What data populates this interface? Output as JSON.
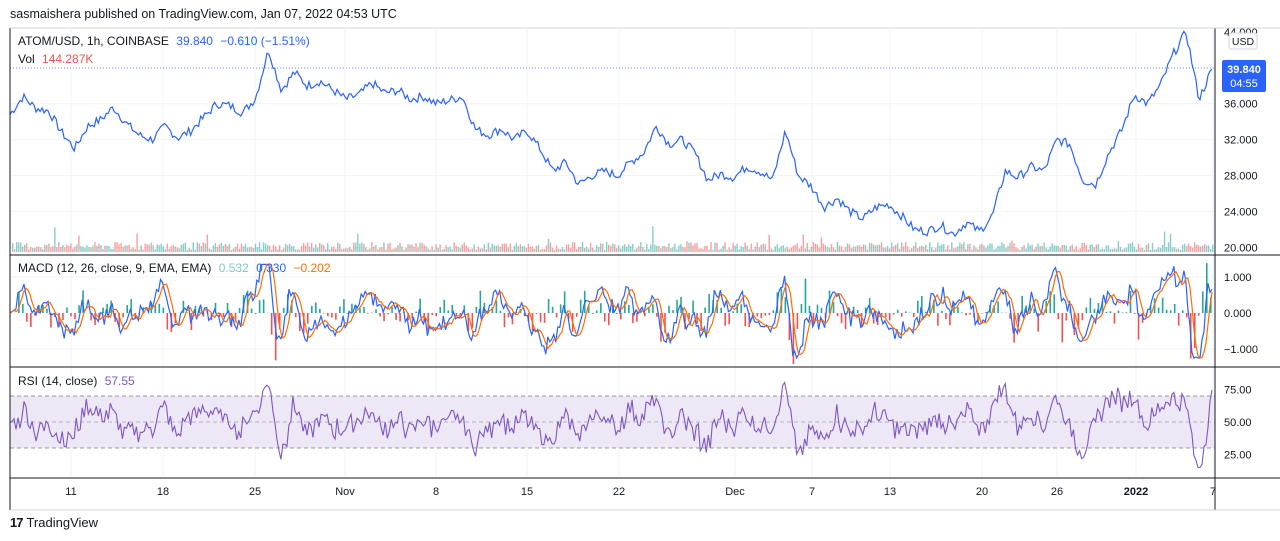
{
  "header": {
    "text": "sasmaishera published on TradingView.com, Jan 07, 2022 04:53 UTC"
  },
  "footer": {
    "brand": "TradingView",
    "logo": "tradingview-logo-icon"
  },
  "colors": {
    "price_line": "#2962ff",
    "vol_up": "#26a69a",
    "vol_down": "#ef5350",
    "macd": "#2962ff",
    "signal": "#ff6d00",
    "rsi": "#7e57c2",
    "rsi_band": "#ede7f6"
  },
  "legend": {
    "main": {
      "symbol": "ATOM/USD, 1h, COINBASE",
      "price": "39.840",
      "change": "−0.610 (−1.51%)"
    },
    "vol": {
      "label": "Vol",
      "value": "144.287K"
    },
    "macd": {
      "label": "MACD (12, 26, close, 9, EMA, EMA)",
      "hist": "0.532",
      "macd": "0.330",
      "signal": "−0.202"
    },
    "rsi": {
      "label": "RSI (14, close)",
      "value": "57.55"
    }
  },
  "price_scale": {
    "currency": "USD",
    "last_price": "39.840",
    "countdown": "04:55",
    "top_partial": "44.000",
    "ticks": [
      "36.000",
      "32.000",
      "28.000",
      "24.000",
      "20.000"
    ]
  },
  "macd_scale": {
    "ticks": [
      "1.000",
      "0.000",
      "−1.000"
    ]
  },
  "rsi_scale": {
    "ticks": [
      "75.00",
      "50.00",
      "25.00"
    ]
  },
  "time_axis": {
    "labels": [
      "11",
      "18",
      "25",
      "Nov",
      "8",
      "15",
      "22",
      "Dec",
      "7",
      "13",
      "20",
      "26",
      "2022",
      "7"
    ]
  },
  "chart_data": {
    "type": "line",
    "series": [
      {
        "name": "ATOM/USD",
        "values": [
          {
            "x": "Oct 06 2021",
            "y": 34.8
          },
          {
            "x": "Oct 07",
            "y": 36.8
          },
          {
            "x": "Oct 08",
            "y": 35.5
          },
          {
            "x": "Oct 09",
            "y": 35.2
          },
          {
            "x": "Oct 10",
            "y": 32.8
          },
          {
            "x": "Oct 11",
            "y": 31.0
          },
          {
            "x": "Oct 12",
            "y": 33.5
          },
          {
            "x": "Oct 13",
            "y": 34.2
          },
          {
            "x": "Oct 14",
            "y": 35.6
          },
          {
            "x": "Oct 15",
            "y": 33.8
          },
          {
            "x": "Oct 16",
            "y": 32.5
          },
          {
            "x": "Oct 17",
            "y": 32.0
          },
          {
            "x": "Oct 18",
            "y": 33.5
          },
          {
            "x": "Oct 19",
            "y": 32.2
          },
          {
            "x": "Oct 20",
            "y": 33.0
          },
          {
            "x": "Oct 21",
            "y": 34.5
          },
          {
            "x": "Oct 22",
            "y": 36.0
          },
          {
            "x": "Oct 23",
            "y": 35.8
          },
          {
            "x": "Oct 24",
            "y": 35.0
          },
          {
            "x": "Oct 25",
            "y": 36.6
          },
          {
            "x": "Oct 26",
            "y": 42.0
          },
          {
            "x": "Oct 27",
            "y": 37.5
          },
          {
            "x": "Oct 28",
            "y": 39.5
          },
          {
            "x": "Oct 29",
            "y": 38.0
          },
          {
            "x": "Oct 30",
            "y": 38.5
          },
          {
            "x": "Oct 31",
            "y": 37.5
          },
          {
            "x": "Nov 01",
            "y": 36.5
          },
          {
            "x": "Nov 02",
            "y": 37.0
          },
          {
            "x": "Nov 03",
            "y": 38.3
          },
          {
            "x": "Nov 04",
            "y": 37.2
          },
          {
            "x": "Nov 05",
            "y": 37.5
          },
          {
            "x": "Nov 06",
            "y": 36.5
          },
          {
            "x": "Nov 07",
            "y": 36.8
          },
          {
            "x": "Nov 08",
            "y": 36.0
          },
          {
            "x": "Nov 09",
            "y": 36.4
          },
          {
            "x": "Nov 10",
            "y": 36.8
          },
          {
            "x": "Nov 11",
            "y": 33.2
          },
          {
            "x": "Nov 12",
            "y": 32.5
          },
          {
            "x": "Nov 13",
            "y": 33.2
          },
          {
            "x": "Nov 14",
            "y": 32.0
          },
          {
            "x": "Nov 15",
            "y": 33.0
          },
          {
            "x": "Nov 16",
            "y": 31.0
          },
          {
            "x": "Nov 17",
            "y": 28.5
          },
          {
            "x": "Nov 18",
            "y": 29.5
          },
          {
            "x": "Nov 19",
            "y": 27.0
          },
          {
            "x": "Nov 20",
            "y": 28.0
          },
          {
            "x": "Nov 21",
            "y": 28.5
          },
          {
            "x": "Nov 22",
            "y": 28.0
          },
          {
            "x": "Nov 23",
            "y": 29.5
          },
          {
            "x": "Nov 24",
            "y": 30.5
          },
          {
            "x": "Nov 25",
            "y": 33.5
          },
          {
            "x": "Nov 26",
            "y": 31.5
          },
          {
            "x": "Nov 27",
            "y": 32.0
          },
          {
            "x": "Nov 28",
            "y": 30.5
          },
          {
            "x": "Nov 29",
            "y": 27.5
          },
          {
            "x": "Nov 30",
            "y": 28.2
          },
          {
            "x": "Dec 01",
            "y": 27.8
          },
          {
            "x": "Dec 02",
            "y": 29.0
          },
          {
            "x": "Dec 03",
            "y": 28.5
          },
          {
            "x": "Dec 04",
            "y": 27.5
          },
          {
            "x": "Dec 05",
            "y": 33.0
          },
          {
            "x": "Dec 06",
            "y": 28.0
          },
          {
            "x": "Dec 07",
            "y": 26.8
          },
          {
            "x": "Dec 08",
            "y": 24.5
          },
          {
            "x": "Dec 09",
            "y": 25.5
          },
          {
            "x": "Dec 10",
            "y": 24.0
          },
          {
            "x": "Dec 11",
            "y": 23.2
          },
          {
            "x": "Dec 12",
            "y": 24.5
          },
          {
            "x": "Dec 13",
            "y": 24.8
          },
          {
            "x": "Dec 14",
            "y": 23.5
          },
          {
            "x": "Dec 15",
            "y": 22.0
          },
          {
            "x": "Dec 16",
            "y": 21.8
          },
          {
            "x": "Dec 17",
            "y": 22.5
          },
          {
            "x": "Dec 18",
            "y": 21.5
          },
          {
            "x": "Dec 19",
            "y": 22.8
          },
          {
            "x": "Dec 20",
            "y": 21.8
          },
          {
            "x": "Dec 21",
            "y": 23.5
          },
          {
            "x": "Dec 22",
            "y": 28.5
          },
          {
            "x": "Dec 23",
            "y": 27.8
          },
          {
            "x": "Dec 24",
            "y": 29.0
          },
          {
            "x": "Dec 25",
            "y": 28.5
          },
          {
            "x": "Dec 26",
            "y": 32.0
          },
          {
            "x": "Dec 27",
            "y": 31.5
          },
          {
            "x": "Dec 28",
            "y": 27.5
          },
          {
            "x": "Dec 29",
            "y": 27.0
          },
          {
            "x": "Dec 30",
            "y": 30.5
          },
          {
            "x": "Dec 31",
            "y": 33.0
          },
          {
            "x": "Jan 01 2022",
            "y": 37.0
          },
          {
            "x": "Jan 02",
            "y": 36.0
          },
          {
            "x": "Jan 03",
            "y": 38.0
          },
          {
            "x": "Jan 04",
            "y": 41.5
          },
          {
            "x": "Jan 05",
            "y": 44.0
          },
          {
            "x": "Jan 06",
            "y": 36.5
          },
          {
            "x": "Jan 07",
            "y": 39.84
          }
        ]
      }
    ],
    "ylim": [
      19.4,
      44.2
    ],
    "title": "",
    "xlabel": "",
    "ylabel": "",
    "grid": true,
    "indicators": [
      "Vol",
      "MACD (12, 26, close, 9, EMA, EMA)",
      "RSI (14, close)"
    ],
    "rsi_band": [
      30,
      70
    ]
  }
}
